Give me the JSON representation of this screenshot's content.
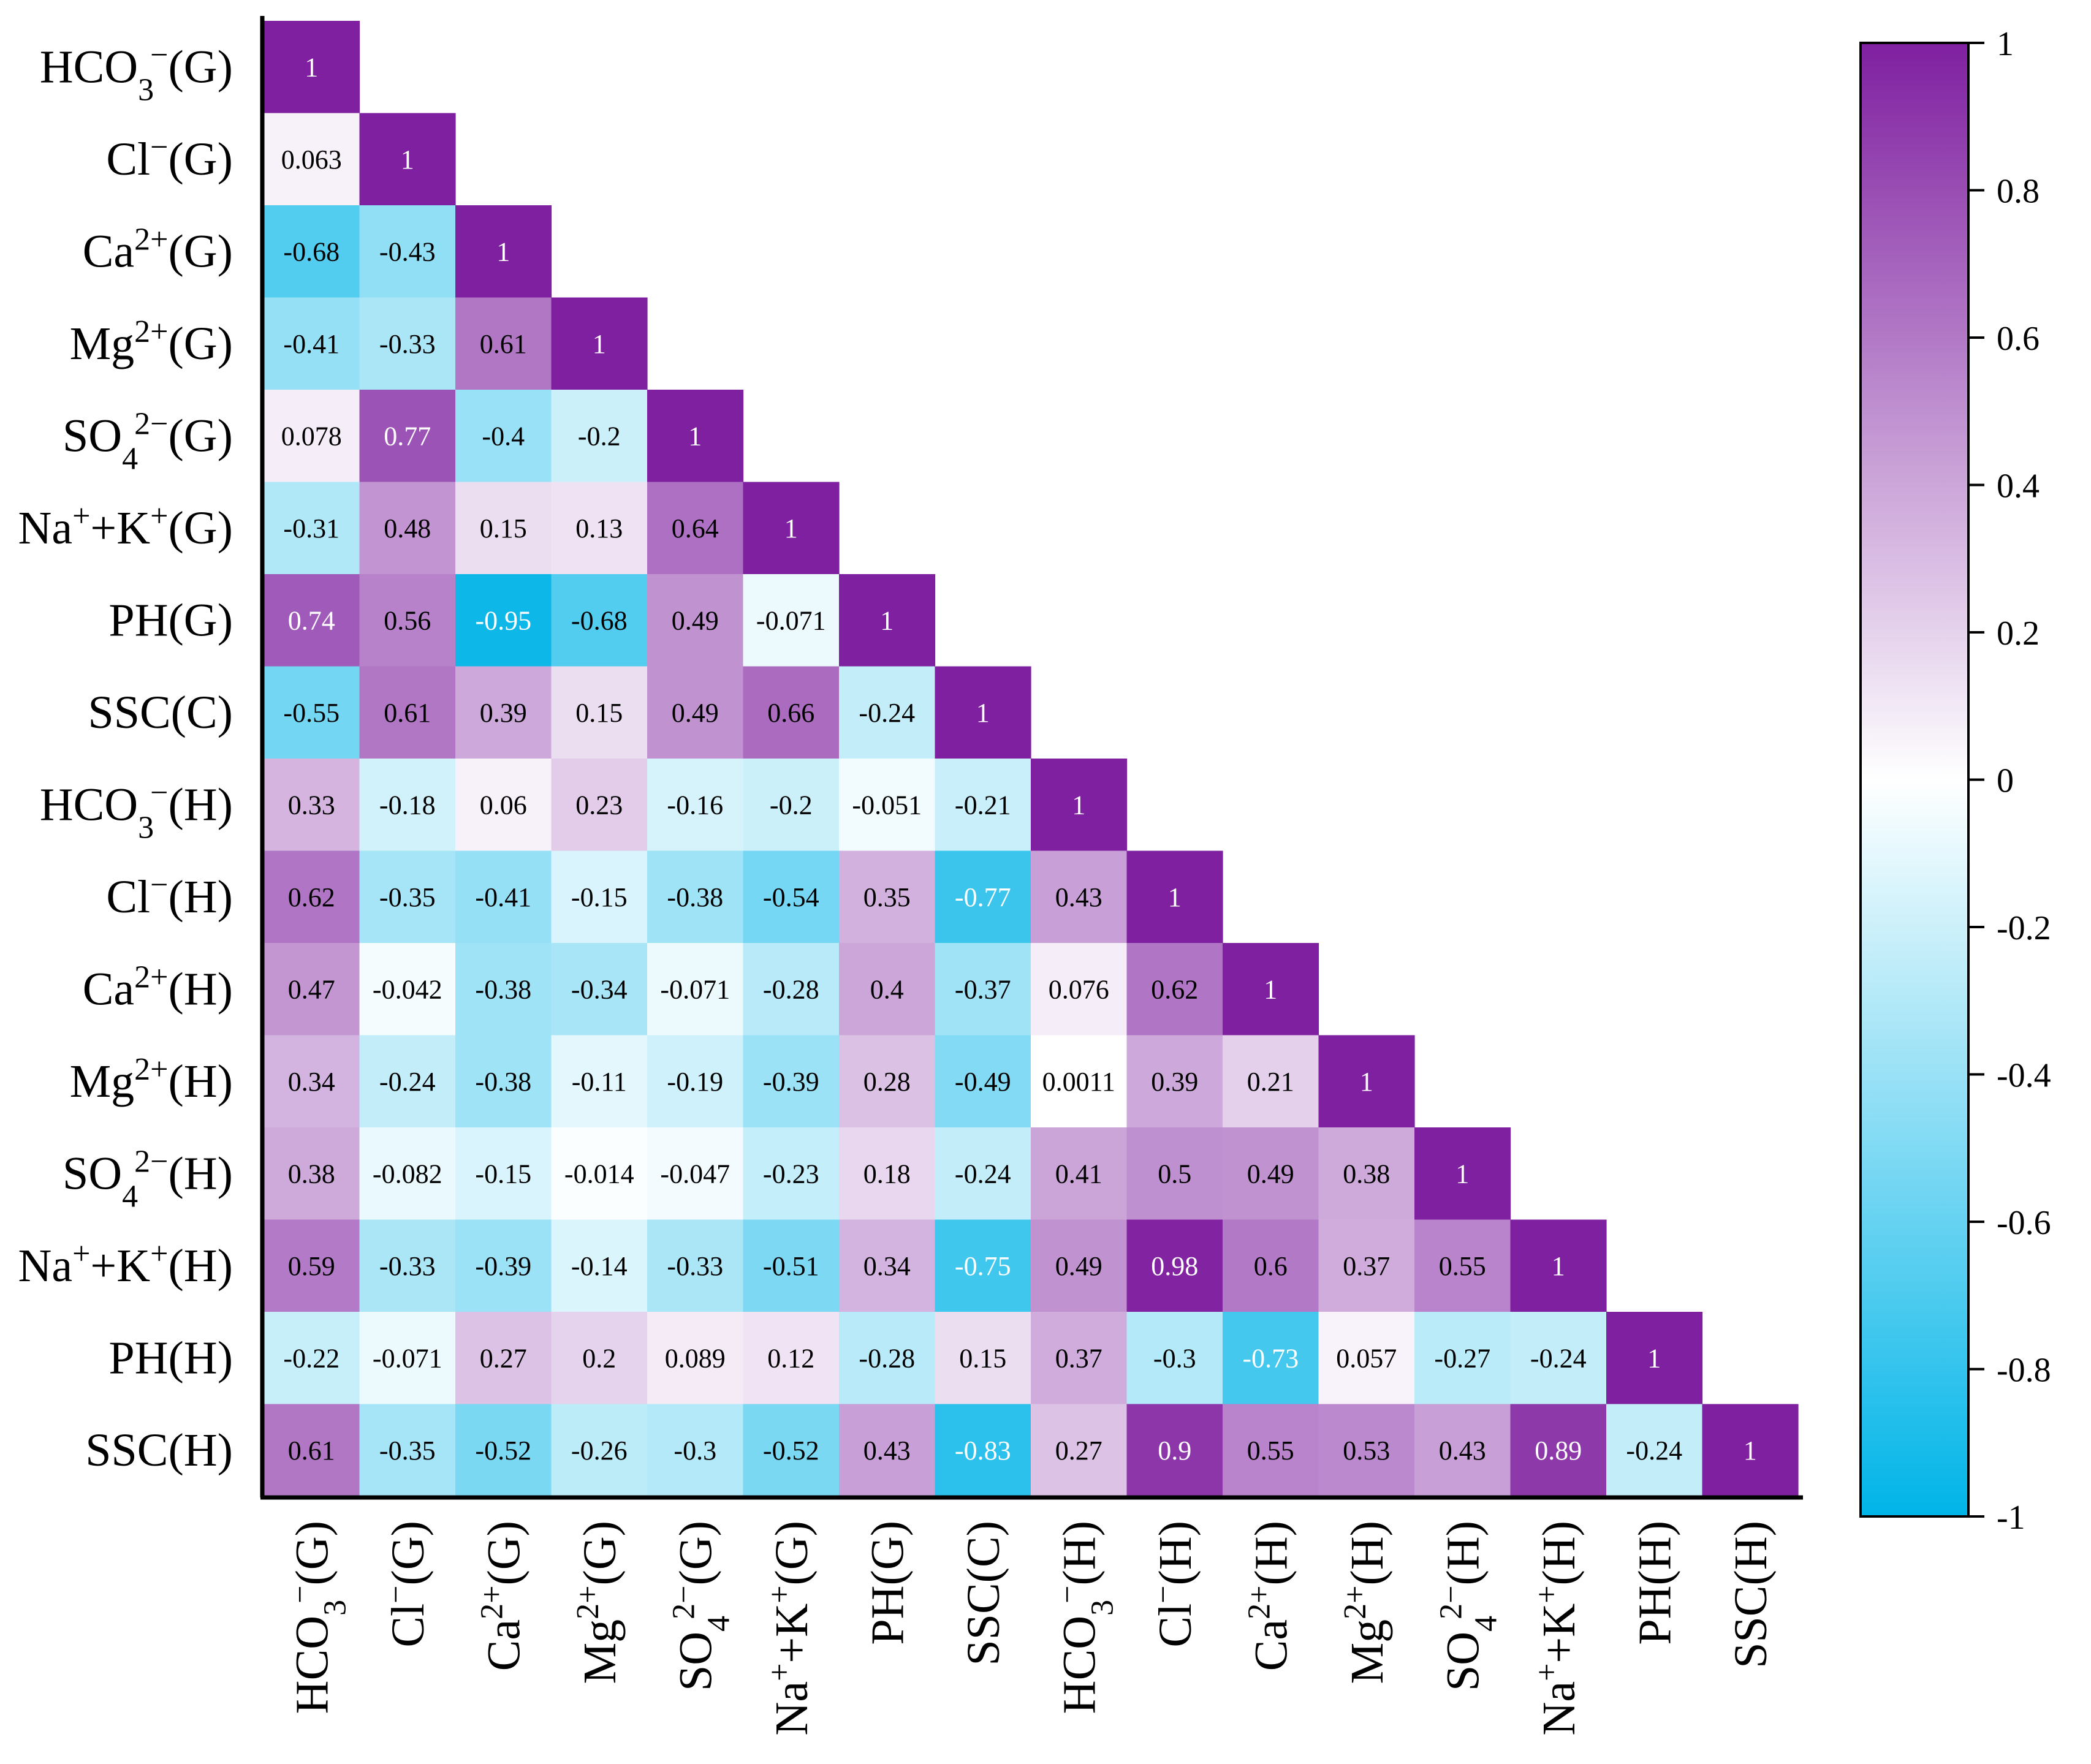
{
  "chart_data": {
    "type": "heatmap",
    "subtype": "lower-triangular correlation matrix",
    "variables": [
      {
        "base": "HCO",
        "sub": "3",
        "sup": "−",
        "suffix": "(G)"
      },
      {
        "base": "Cl",
        "sub": "",
        "sup": "−",
        "suffix": "(G)"
      },
      {
        "base": "Ca",
        "sub": "",
        "sup": "2+",
        "suffix": "(G)"
      },
      {
        "base": "Mg",
        "sub": "",
        "sup": "2+",
        "suffix": "(G)"
      },
      {
        "base": "SO",
        "sub": "4",
        "sup": "2−",
        "suffix": "(G)"
      },
      {
        "base": "Na",
        "sub": "",
        "sup": "+",
        "suffix": "+K",
        "sup2": "+",
        "suffix2": "(G)"
      },
      {
        "base": "PH(G)",
        "sub": "",
        "sup": "",
        "suffix": ""
      },
      {
        "base": "SSC(C)",
        "sub": "",
        "sup": "",
        "suffix": ""
      },
      {
        "base": "HCO",
        "sub": "3",
        "sup": "−",
        "suffix": "(H)"
      },
      {
        "base": "Cl",
        "sub": "",
        "sup": "−",
        "suffix": "(H)"
      },
      {
        "base": "Ca",
        "sub": "",
        "sup": "2+",
        "suffix": "(H)"
      },
      {
        "base": "Mg",
        "sub": "",
        "sup": "2+",
        "suffix": "(H)"
      },
      {
        "base": "SO",
        "sub": "4",
        "sup": "2−",
        "suffix": "(H)"
      },
      {
        "base": "Na",
        "sub": "",
        "sup": "+",
        "suffix": "+K",
        "sup2": "+",
        "suffix2": "(H)"
      },
      {
        "base": "PH(H)",
        "sub": "",
        "sup": "",
        "suffix": ""
      },
      {
        "base": "SSC(H)",
        "sub": "",
        "sup": "",
        "suffix": ""
      }
    ],
    "matrix": [
      [
        "1"
      ],
      [
        "0.063",
        "1"
      ],
      [
        "-0.68",
        "-0.43",
        "1"
      ],
      [
        "-0.41",
        "-0.33",
        "0.61",
        "1"
      ],
      [
        "0.078",
        "0.77",
        "-0.4",
        "-0.2",
        "1"
      ],
      [
        "-0.31",
        "0.48",
        "0.15",
        "0.13",
        "0.64",
        "1"
      ],
      [
        "0.74",
        "0.56",
        "-0.95",
        "-0.68",
        "0.49",
        "-0.071",
        "1"
      ],
      [
        "-0.55",
        "0.61",
        "0.39",
        "0.15",
        "0.49",
        "0.66",
        "-0.24",
        "1"
      ],
      [
        "0.33",
        "-0.18",
        "0.06",
        "0.23",
        "-0.16",
        "-0.2",
        "-0.051",
        "-0.21",
        "1"
      ],
      [
        "0.62",
        "-0.35",
        "-0.41",
        "-0.15",
        "-0.38",
        "-0.54",
        "0.35",
        "-0.77",
        "0.43",
        "1"
      ],
      [
        "0.47",
        "-0.042",
        "-0.38",
        "-0.34",
        "-0.071",
        "-0.28",
        "0.4",
        "-0.37",
        "0.076",
        "0.62",
        "1"
      ],
      [
        "0.34",
        "-0.24",
        "-0.38",
        "-0.11",
        "-0.19",
        "-0.39",
        "0.28",
        "-0.49",
        "0.0011",
        "0.39",
        "0.21",
        "1"
      ],
      [
        "0.38",
        "-0.082",
        "-0.15",
        "-0.014",
        "-0.047",
        "-0.23",
        "0.18",
        "-0.24",
        "0.41",
        "0.5",
        "0.49",
        "0.38",
        "1"
      ],
      [
        "0.59",
        "-0.33",
        "-0.39",
        "-0.14",
        "-0.33",
        "-0.51",
        "0.34",
        "-0.75",
        "0.49",
        "0.98",
        "0.6",
        "0.37",
        "0.55",
        "1"
      ],
      [
        "-0.22",
        "-0.071",
        "0.27",
        "0.2",
        "0.089",
        "0.12",
        "-0.28",
        "0.15",
        "0.37",
        "-0.3",
        "-0.73",
        "0.057",
        "-0.27",
        "-0.24",
        "1"
      ],
      [
        "0.61",
        "-0.35",
        "-0.52",
        "-0.26",
        "-0.3",
        "-0.52",
        "0.43",
        "-0.83",
        "0.27",
        "0.9",
        "0.55",
        "0.53",
        "0.43",
        "0.89",
        "-0.24",
        "1"
      ]
    ],
    "colorbar": {
      "range": [
        -1,
        1
      ],
      "ticks": [
        "1",
        "0.8",
        "0.6",
        "0.4",
        "0.2",
        "0",
        "-0.2",
        "-0.4",
        "-0.6",
        "-0.8",
        "-1"
      ],
      "colors": {
        "low": "#00b4e8",
        "mid": "#ffffff",
        "high": "#7f20a0"
      }
    }
  }
}
